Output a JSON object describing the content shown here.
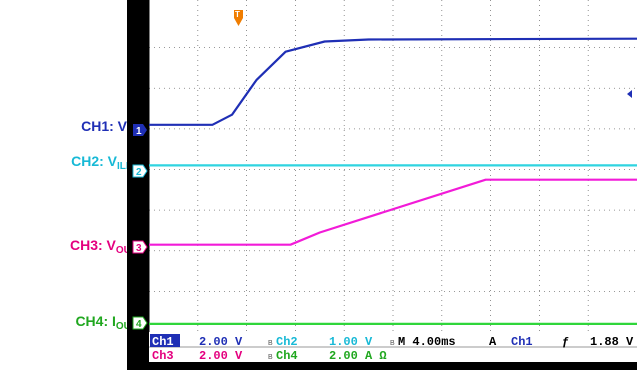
{
  "labels": [
    {
      "key": "ch1",
      "main": "CH1: V",
      "sub": "IN",
      "color": "#1f2fb5"
    },
    {
      "key": "ch2",
      "main": "CH2: V",
      "sub": "ILIM",
      "color": "#17b9d6"
    },
    {
      "key": "ch3",
      "main": "CH3: V",
      "sub": "OUT",
      "color": "#e4007f"
    },
    {
      "key": "ch4",
      "main": "CH4: I",
      "sub": "OUT",
      "color": "#20a71f"
    }
  ],
  "status": {
    "ch1_name": "Ch1",
    "ch1_scale": "2.00 V",
    "ch2_name": "Ch2",
    "ch2_scale": "1.00 V",
    "ch3_name": "Ch3",
    "ch3_scale": "2.00 V",
    "ch4_name": "Ch4",
    "ch4_scale": "2.00 A Ω",
    "bw": "B",
    "timebase": "M 4.00ms",
    "trigger_mode": "A",
    "trigger_src": "Ch1",
    "trigger_slope": "ƒ",
    "trigger_level": "1.88 V"
  },
  "markers": {
    "ch1": "1",
    "ch2": "2",
    "ch3": "3",
    "ch4": "4",
    "trigger": "T"
  },
  "colors": {
    "ch1": "#1f2fb5",
    "ch2": "#2fd4e0",
    "ch3": "#f21bd8",
    "ch4": "#2fd63a",
    "grid": "#777777",
    "border": "#000000"
  },
  "chart_data": {
    "type": "line",
    "grid": true,
    "x_divisions": 10,
    "y_divisions": 8,
    "series": [
      {
        "name": "CH1: VIN",
        "points": [
          [
            0,
            5.1
          ],
          [
            1.3,
            5.1
          ],
          [
            1.7,
            5.35
          ],
          [
            2.2,
            6.2
          ],
          [
            2.8,
            6.9
          ],
          [
            3.6,
            7.15
          ],
          [
            4.5,
            7.2
          ],
          [
            10,
            7.22
          ]
        ]
      },
      {
        "name": "CH2: VILIM",
        "points": [
          [
            0,
            4.1
          ],
          [
            10,
            4.1
          ]
        ]
      },
      {
        "name": "CH3: VOUT",
        "points": [
          [
            0,
            2.15
          ],
          [
            2.9,
            2.15
          ],
          [
            3.5,
            2.45
          ],
          [
            6.9,
            3.75
          ],
          [
            10,
            3.75
          ]
        ]
      },
      {
        "name": "CH4: IOUT",
        "points": [
          [
            0,
            0.2
          ],
          [
            10,
            0.2
          ]
        ]
      }
    ]
  }
}
